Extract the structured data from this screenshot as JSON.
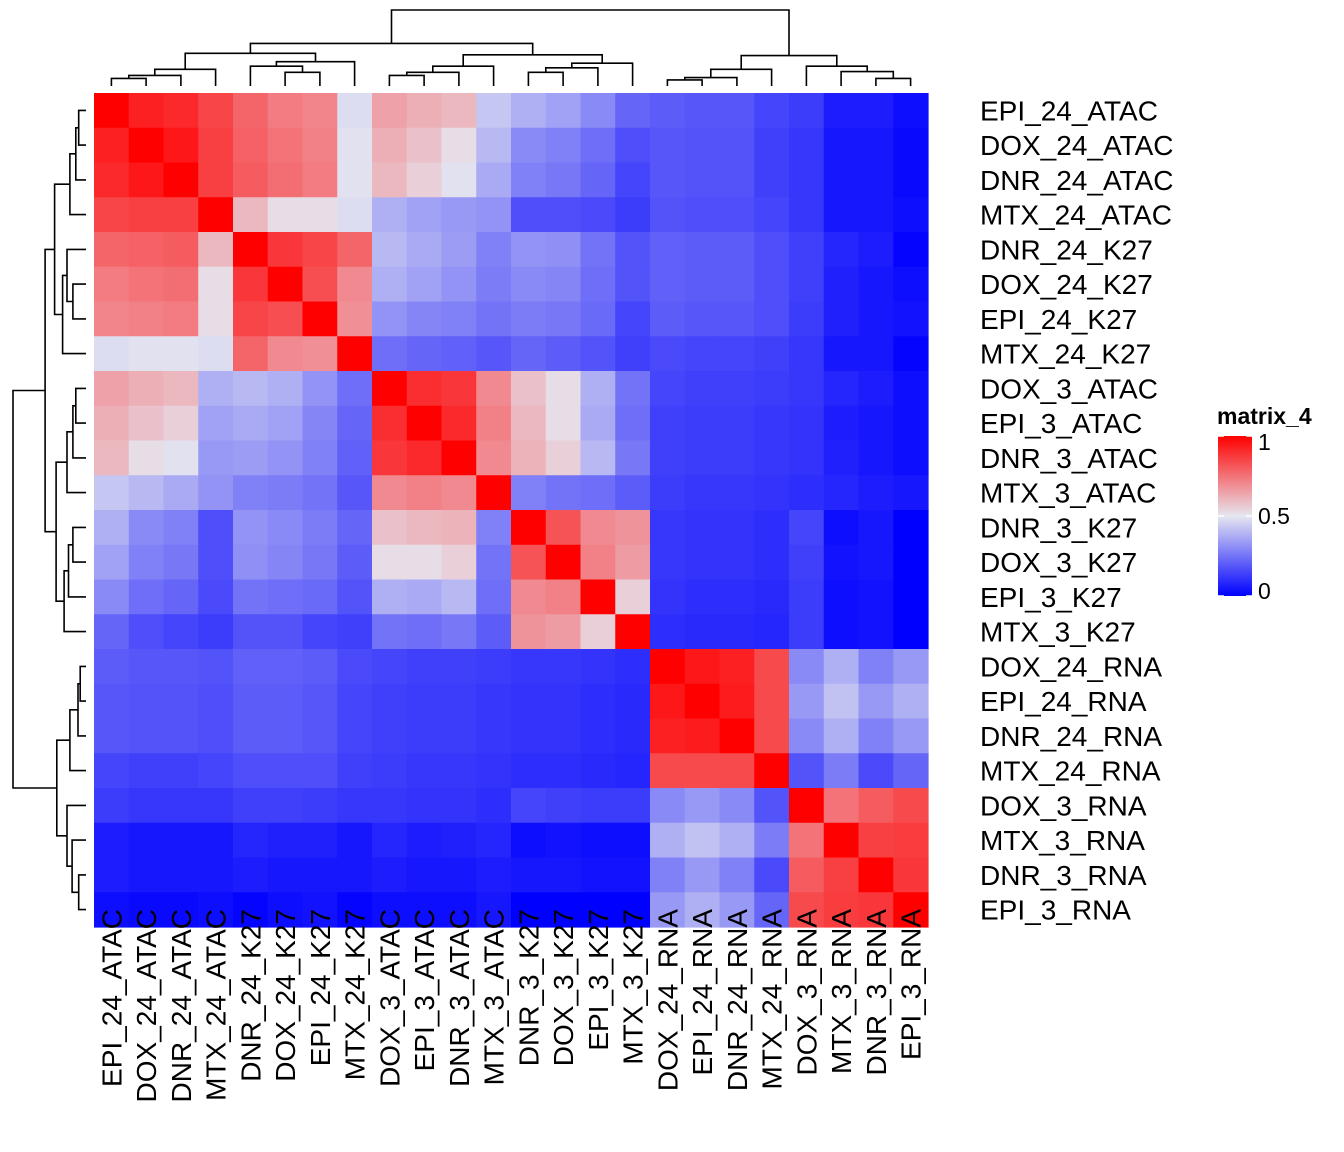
{
  "chart_data": {
    "type": "heatmap",
    "legend": {
      "title": "matrix_4",
      "ticks": [
        "1",
        "0.5",
        "0"
      ],
      "tick_values": [
        1,
        0.5,
        0
      ],
      "range": [
        0,
        1
      ],
      "placement": "right",
      "colors": {
        "low": "#0000FF",
        "mid": "#E6E6F0",
        "high": "#FF0000"
      }
    },
    "labels": [
      "EPI_24_ATAC",
      "DOX_24_ATAC",
      "DNR_24_ATAC",
      "MTX_24_ATAC",
      "DNR_24_K27",
      "DOX_24_K27",
      "EPI_24_K27",
      "MTX_24_K27",
      "DOX_3_ATAC",
      "EPI_3_ATAC",
      "DNR_3_ATAC",
      "MTX_3_ATAC",
      "DNR_3_K27",
      "DOX_3_K27",
      "EPI_3_K27",
      "MTX_3_K27",
      "DOX_24_RNA",
      "EPI_24_RNA",
      "DNR_24_RNA",
      "MTX_24_RNA",
      "DOX_3_RNA",
      "MTX_3_RNA",
      "DNR_3_RNA",
      "EPI_3_RNA"
    ],
    "values": [
      [
        1.0,
        0.93,
        0.91,
        0.85,
        0.78,
        0.73,
        0.71,
        0.48,
        0.65,
        0.62,
        0.6,
        0.43,
        0.38,
        0.35,
        0.3,
        0.22,
        0.2,
        0.19,
        0.19,
        0.15,
        0.13,
        0.06,
        0.06,
        0.03
      ],
      [
        0.93,
        1.0,
        0.95,
        0.86,
        0.79,
        0.75,
        0.72,
        0.49,
        0.62,
        0.58,
        0.52,
        0.4,
        0.3,
        0.28,
        0.24,
        0.17,
        0.19,
        0.18,
        0.18,
        0.14,
        0.12,
        0.05,
        0.05,
        0.02
      ],
      [
        0.91,
        0.95,
        1.0,
        0.86,
        0.8,
        0.76,
        0.73,
        0.49,
        0.6,
        0.55,
        0.49,
        0.37,
        0.28,
        0.26,
        0.22,
        0.15,
        0.19,
        0.18,
        0.18,
        0.14,
        0.12,
        0.05,
        0.05,
        0.02
      ],
      [
        0.85,
        0.86,
        0.86,
        1.0,
        0.6,
        0.52,
        0.52,
        0.48,
        0.38,
        0.35,
        0.33,
        0.32,
        0.17,
        0.17,
        0.16,
        0.13,
        0.18,
        0.17,
        0.17,
        0.15,
        0.12,
        0.05,
        0.05,
        0.03
      ],
      [
        0.78,
        0.79,
        0.8,
        0.6,
        1.0,
        0.88,
        0.85,
        0.78,
        0.4,
        0.37,
        0.34,
        0.28,
        0.32,
        0.31,
        0.25,
        0.18,
        0.21,
        0.2,
        0.2,
        0.17,
        0.14,
        0.08,
        0.06,
        0.01
      ],
      [
        0.73,
        0.75,
        0.76,
        0.52,
        0.88,
        1.0,
        0.83,
        0.7,
        0.38,
        0.35,
        0.32,
        0.27,
        0.3,
        0.29,
        0.24,
        0.18,
        0.21,
        0.2,
        0.2,
        0.17,
        0.14,
        0.07,
        0.05,
        0.03
      ],
      [
        0.71,
        0.72,
        0.73,
        0.52,
        0.85,
        0.83,
        1.0,
        0.69,
        0.32,
        0.29,
        0.28,
        0.25,
        0.27,
        0.26,
        0.23,
        0.15,
        0.2,
        0.19,
        0.19,
        0.17,
        0.13,
        0.07,
        0.05,
        0.04
      ],
      [
        0.48,
        0.49,
        0.49,
        0.48,
        0.78,
        0.7,
        0.69,
        1.0,
        0.24,
        0.22,
        0.21,
        0.19,
        0.22,
        0.2,
        0.18,
        0.14,
        0.16,
        0.15,
        0.15,
        0.14,
        0.12,
        0.05,
        0.05,
        0.01
      ],
      [
        0.65,
        0.62,
        0.6,
        0.38,
        0.4,
        0.38,
        0.32,
        0.24,
        1.0,
        0.9,
        0.88,
        0.7,
        0.58,
        0.52,
        0.38,
        0.25,
        0.15,
        0.14,
        0.14,
        0.13,
        0.12,
        0.08,
        0.06,
        0.03
      ],
      [
        0.62,
        0.58,
        0.55,
        0.35,
        0.37,
        0.35,
        0.29,
        0.22,
        0.9,
        1.0,
        0.91,
        0.72,
        0.6,
        0.52,
        0.37,
        0.24,
        0.14,
        0.13,
        0.13,
        0.12,
        0.11,
        0.06,
        0.05,
        0.03
      ],
      [
        0.6,
        0.52,
        0.49,
        0.33,
        0.34,
        0.32,
        0.28,
        0.21,
        0.88,
        0.91,
        1.0,
        0.7,
        0.61,
        0.55,
        0.4,
        0.26,
        0.14,
        0.13,
        0.13,
        0.12,
        0.11,
        0.07,
        0.05,
        0.03
      ],
      [
        0.43,
        0.4,
        0.37,
        0.32,
        0.28,
        0.27,
        0.25,
        0.19,
        0.7,
        0.72,
        0.7,
        1.0,
        0.28,
        0.25,
        0.24,
        0.2,
        0.13,
        0.12,
        0.12,
        0.11,
        0.1,
        0.08,
        0.06,
        0.05
      ],
      [
        0.38,
        0.3,
        0.28,
        0.17,
        0.32,
        0.3,
        0.27,
        0.22,
        0.58,
        0.6,
        0.61,
        0.28,
        1.0,
        0.82,
        0.7,
        0.68,
        0.12,
        0.11,
        0.11,
        0.1,
        0.15,
        0.03,
        0.05,
        0.0
      ],
      [
        0.35,
        0.28,
        0.26,
        0.17,
        0.31,
        0.29,
        0.26,
        0.2,
        0.52,
        0.52,
        0.55,
        0.25,
        0.82,
        1.0,
        0.72,
        0.66,
        0.12,
        0.11,
        0.11,
        0.1,
        0.14,
        0.04,
        0.05,
        0.0
      ],
      [
        0.3,
        0.24,
        0.22,
        0.16,
        0.25,
        0.24,
        0.23,
        0.18,
        0.38,
        0.37,
        0.4,
        0.24,
        0.7,
        0.72,
        1.0,
        0.55,
        0.11,
        0.1,
        0.1,
        0.09,
        0.13,
        0.03,
        0.04,
        0.0
      ],
      [
        0.22,
        0.17,
        0.15,
        0.13,
        0.18,
        0.18,
        0.15,
        0.14,
        0.25,
        0.24,
        0.26,
        0.2,
        0.68,
        0.66,
        0.55,
        1.0,
        0.1,
        0.09,
        0.09,
        0.08,
        0.13,
        0.03,
        0.04,
        0.0
      ],
      [
        0.2,
        0.19,
        0.19,
        0.18,
        0.21,
        0.21,
        0.2,
        0.16,
        0.15,
        0.14,
        0.14,
        0.13,
        0.12,
        0.12,
        0.11,
        0.1,
        1.0,
        0.95,
        0.93,
        0.84,
        0.3,
        0.38,
        0.28,
        0.33
      ],
      [
        0.19,
        0.18,
        0.18,
        0.17,
        0.2,
        0.2,
        0.19,
        0.15,
        0.14,
        0.13,
        0.13,
        0.12,
        0.11,
        0.11,
        0.1,
        0.09,
        0.95,
        1.0,
        0.94,
        0.84,
        0.33,
        0.42,
        0.33,
        0.38
      ],
      [
        0.19,
        0.18,
        0.18,
        0.17,
        0.2,
        0.2,
        0.19,
        0.15,
        0.14,
        0.13,
        0.13,
        0.12,
        0.11,
        0.11,
        0.1,
        0.09,
        0.93,
        0.94,
        1.0,
        0.84,
        0.3,
        0.38,
        0.28,
        0.33
      ],
      [
        0.15,
        0.14,
        0.14,
        0.15,
        0.17,
        0.17,
        0.17,
        0.14,
        0.13,
        0.12,
        0.12,
        0.11,
        0.1,
        0.1,
        0.09,
        0.08,
        0.84,
        0.84,
        0.84,
        1.0,
        0.18,
        0.27,
        0.16,
        0.22
      ],
      [
        0.13,
        0.12,
        0.12,
        0.12,
        0.14,
        0.14,
        0.13,
        0.12,
        0.12,
        0.11,
        0.11,
        0.1,
        0.15,
        0.14,
        0.13,
        0.13,
        0.3,
        0.33,
        0.3,
        0.18,
        1.0,
        0.75,
        0.8,
        0.84
      ],
      [
        0.06,
        0.05,
        0.05,
        0.05,
        0.08,
        0.07,
        0.07,
        0.05,
        0.08,
        0.06,
        0.07,
        0.08,
        0.03,
        0.04,
        0.03,
        0.03,
        0.38,
        0.42,
        0.38,
        0.27,
        0.75,
        1.0,
        0.86,
        0.87
      ],
      [
        0.06,
        0.05,
        0.05,
        0.05,
        0.06,
        0.05,
        0.05,
        0.05,
        0.06,
        0.05,
        0.05,
        0.06,
        0.05,
        0.05,
        0.04,
        0.04,
        0.28,
        0.33,
        0.28,
        0.16,
        0.8,
        0.86,
        1.0,
        0.88
      ],
      [
        0.03,
        0.02,
        0.02,
        0.03,
        0.01,
        0.03,
        0.04,
        0.01,
        0.03,
        0.03,
        0.03,
        0.05,
        0.0,
        0.0,
        0.0,
        0.0,
        0.33,
        0.38,
        0.33,
        0.22,
        0.84,
        0.87,
        0.88,
        1.0
      ]
    ],
    "dendrogram": {
      "description": "hierarchical clustering tree, identical for rows and columns; heights in data units (root = 10)",
      "merges": [
        [
          0,
          1,
          1.0
        ],
        [
          24,
          2,
          1.4
        ],
        [
          25,
          3,
          2.2
        ],
        [
          5,
          6,
          1.8
        ],
        [
          4,
          27,
          2.6
        ],
        [
          28,
          7,
          3.2
        ],
        [
          26,
          29,
          4.3
        ],
        [
          8,
          9,
          1.4
        ],
        [
          31,
          10,
          1.8
        ],
        [
          32,
          11,
          2.6
        ],
        [
          12,
          13,
          1.8
        ],
        [
          34,
          14,
          2.4
        ],
        [
          35,
          15,
          3.0
        ],
        [
          33,
          36,
          4.1
        ],
        [
          30,
          37,
          5.6
        ],
        [
          16,
          17,
          0.8
        ],
        [
          39,
          18,
          1.1
        ],
        [
          40,
          19,
          2.2
        ],
        [
          22,
          23,
          1.0
        ],
        [
          21,
          42,
          1.9
        ],
        [
          20,
          43,
          2.6
        ],
        [
          41,
          44,
          4.0
        ],
        [
          38,
          45,
          10.0
        ]
      ]
    }
  }
}
